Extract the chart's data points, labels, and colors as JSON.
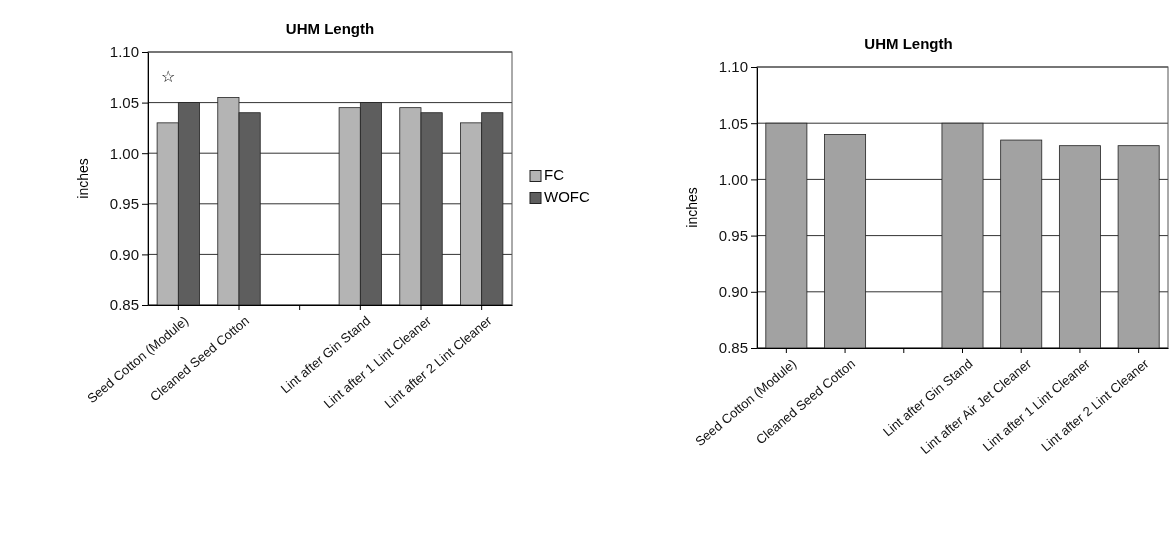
{
  "chart_data": [
    {
      "type": "bar",
      "title": "UHM Length",
      "ylabel": "inches",
      "categories": [
        "Seed Cotton (Module)",
        "Cleaned Seed Cotton",
        null,
        "Lint after Gin Stand",
        "Lint after 1 Lint Cleaner",
        "Lint after 2 Lint Cleaner"
      ],
      "series": [
        {
          "name": "FC",
          "color": "#b4b4b4",
          "values": [
            1.03,
            1.055,
            null,
            1.045,
            1.045,
            1.03
          ]
        },
        {
          "name": "WOFC",
          "color": "#5e5e5e",
          "values": [
            1.05,
            1.04,
            null,
            1.05,
            1.04,
            1.04
          ]
        }
      ],
      "ylim": [
        0.85,
        1.1
      ],
      "yticks": [
        {
          "value": 0.85,
          "label": "0.85"
        },
        {
          "value": 0.9,
          "label": "0.90"
        },
        {
          "value": 0.95,
          "label": "0.95"
        },
        {
          "value": 1.0,
          "label": "1.00"
        },
        {
          "value": 1.05,
          "label": "1.05"
        },
        {
          "value": 1.1,
          "label": "1.10"
        }
      ],
      "grid": "y",
      "legend": "right",
      "annotations": [
        "☆"
      ]
    },
    {
      "type": "bar",
      "title": "UHM Length",
      "ylabel": "inches",
      "categories": [
        "Seed Cotton (Module)",
        "Cleaned Seed Cotton",
        null,
        "Lint after Gin Stand",
        "Lint after Air Jet Cleaner",
        "Lint after 1 Lint Cleaner",
        "Lint after 2 Lint Cleaner"
      ],
      "series": [
        {
          "color": "#a2a2a2",
          "values": [
            1.05,
            1.04,
            null,
            1.05,
            1.035,
            1.03,
            1.03
          ]
        }
      ],
      "ylim": [
        0.85,
        1.1
      ],
      "yticks": [
        {
          "value": 0.85,
          "label": "0.85"
        },
        {
          "value": 0.9,
          "label": "0.90"
        },
        {
          "value": 0.95,
          "label": "0.95"
        },
        {
          "value": 1.0,
          "label": "1.00"
        },
        {
          "value": 1.05,
          "label": "1.05"
        },
        {
          "value": 1.1,
          "label": "1.10"
        }
      ],
      "grid": "y"
    }
  ]
}
